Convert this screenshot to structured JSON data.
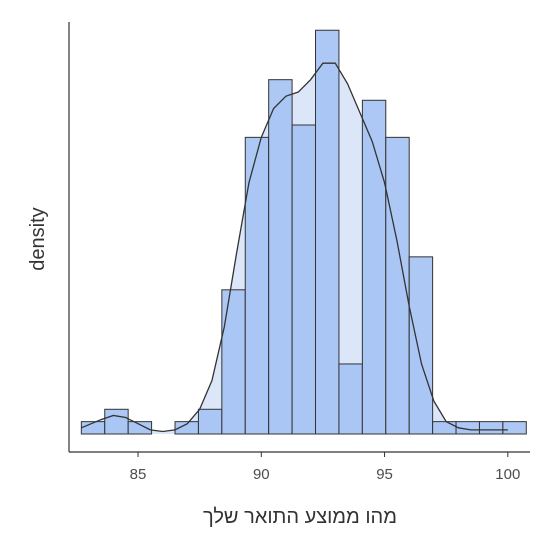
{
  "chart_data": {
    "type": "bar",
    "title": "",
    "xlabel": "מהו ממוצע התואר שלך",
    "ylabel": "density",
    "xlim": [
      82.2,
      100.9
    ],
    "ylim": [
      0,
      0.1
    ],
    "grid": false,
    "legend": "none",
    "x_ticks": [
      {
        "value": 85,
        "label": "85"
      },
      {
        "value": 90,
        "label": "90"
      },
      {
        "value": 95,
        "label": "95"
      },
      {
        "value": 100,
        "label": "100"
      }
    ],
    "bin_width": 0.95,
    "bins": [
      {
        "start": 82.7,
        "end": 83.65,
        "density": 0.003
      },
      {
        "start": 83.65,
        "end": 84.6,
        "density": 0.006
      },
      {
        "start": 84.6,
        "end": 85.55,
        "density": 0.003
      },
      {
        "start": 85.55,
        "end": 86.5,
        "density": 0.0
      },
      {
        "start": 86.5,
        "end": 87.45,
        "density": 0.003
      },
      {
        "start": 87.45,
        "end": 88.4,
        "density": 0.006
      },
      {
        "start": 88.4,
        "end": 89.35,
        "density": 0.035
      },
      {
        "start": 89.35,
        "end": 90.3,
        "density": 0.072
      },
      {
        "start": 90.3,
        "end": 91.25,
        "density": 0.086
      },
      {
        "start": 91.25,
        "end": 92.2,
        "density": 0.075
      },
      {
        "start": 92.2,
        "end": 93.15,
        "density": 0.098
      },
      {
        "start": 93.15,
        "end": 94.1,
        "density": 0.017
      },
      {
        "start": 94.1,
        "end": 95.05,
        "density": 0.081
      },
      {
        "start": 95.05,
        "end": 96.0,
        "density": 0.072
      },
      {
        "start": 96.0,
        "end": 96.95,
        "density": 0.043
      },
      {
        "start": 96.95,
        "end": 97.9,
        "density": 0.003
      },
      {
        "start": 97.9,
        "end": 98.85,
        "density": 0.003
      },
      {
        "start": 98.85,
        "end": 99.8,
        "density": 0.003
      },
      {
        "start": 99.8,
        "end": 100.75,
        "density": 0.003
      }
    ],
    "density_curve": {
      "x": [
        82.7,
        83.5,
        84.0,
        84.5,
        85.0,
        85.5,
        86.0,
        86.5,
        87.0,
        87.5,
        88.0,
        88.5,
        89.0,
        89.5,
        90.0,
        90.5,
        91.0,
        91.5,
        92.0,
        92.5,
        93.0,
        93.5,
        94.0,
        94.5,
        95.0,
        95.5,
        96.0,
        96.5,
        97.0,
        97.5,
        98.0,
        98.5,
        99.0,
        99.5,
        100.0
      ],
      "y": [
        0.0015,
        0.0035,
        0.0045,
        0.004,
        0.0025,
        0.001,
        0.0006,
        0.001,
        0.0025,
        0.006,
        0.013,
        0.026,
        0.044,
        0.061,
        0.072,
        0.079,
        0.082,
        0.083,
        0.086,
        0.09,
        0.09,
        0.085,
        0.078,
        0.071,
        0.061,
        0.047,
        0.031,
        0.017,
        0.008,
        0.003,
        0.0015,
        0.001,
        0.001,
        0.001,
        0.001
      ]
    },
    "colors": {
      "bar_fill": "#a4c2f4",
      "bar_outline": "#333333",
      "density_fill": "#dbe6f8",
      "density_line": "#333333",
      "axis": "#333333",
      "tick_text": "#4d4d4d"
    }
  }
}
